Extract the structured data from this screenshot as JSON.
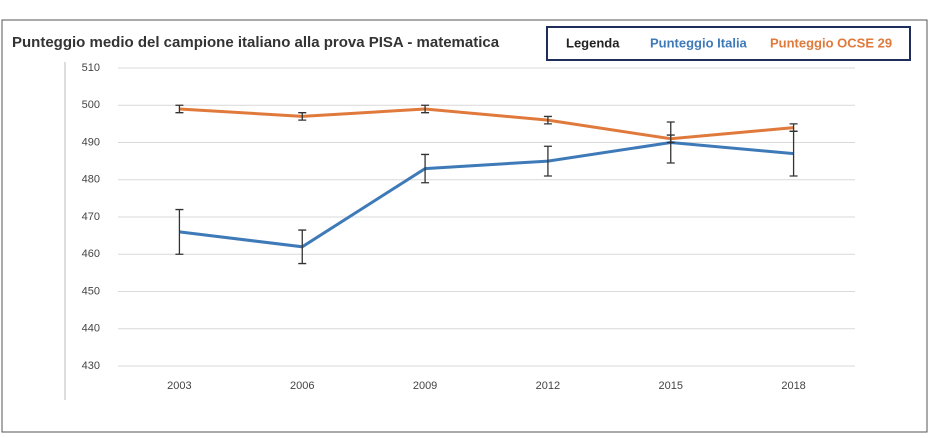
{
  "chart_data": {
    "type": "line",
    "title": "Punteggio medio del campione italiano alla prova PISA - matematica",
    "legend_title": "Legenda",
    "categories": [
      "2003",
      "2006",
      "2009",
      "2012",
      "2015",
      "2018"
    ],
    "series": [
      {
        "name": "Punteggio Italia",
        "color": "#3f7ab8",
        "values": [
          466,
          462,
          483,
          485,
          490,
          487
        ],
        "errors": [
          6,
          4.5,
          3.8,
          4,
          5.5,
          6
        ]
      },
      {
        "name": "Punteggio OCSE 29",
        "color": "#e07a3c",
        "values": [
          499,
          497,
          499,
          496,
          491,
          494
        ],
        "errors": [
          1,
          1,
          1,
          1,
          1,
          1
        ]
      }
    ],
    "ylim": [
      430,
      510
    ],
    "yticks": [
      430,
      440,
      450,
      460,
      470,
      480,
      490,
      500,
      510
    ],
    "grid": true
  }
}
